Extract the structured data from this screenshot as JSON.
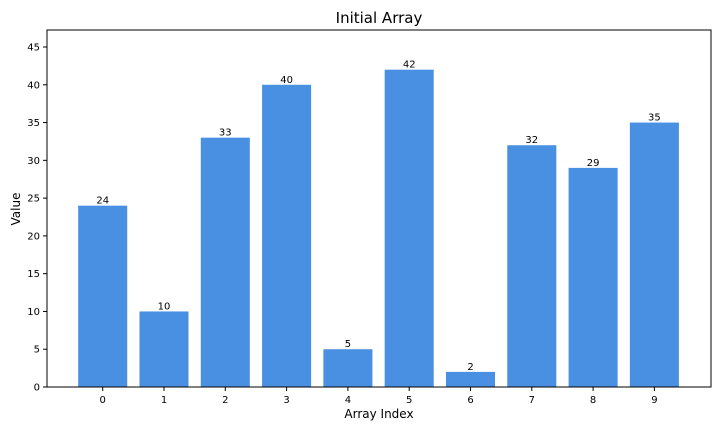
{
  "chart_data": {
    "type": "bar",
    "title": "Initial Array",
    "xlabel": "Array Index",
    "ylabel": "Value",
    "categories": [
      "0",
      "1",
      "2",
      "3",
      "4",
      "5",
      "6",
      "7",
      "8",
      "9"
    ],
    "values": [
      24,
      10,
      33,
      40,
      5,
      42,
      2,
      32,
      29,
      35
    ],
    "ylim": [
      0,
      47.25
    ],
    "yticks": [
      0,
      5,
      10,
      15,
      20,
      25,
      30,
      35,
      40,
      45
    ],
    "bar_color": "#4a90e2",
    "data_labels": true,
    "grid": false,
    "legend": "none"
  }
}
